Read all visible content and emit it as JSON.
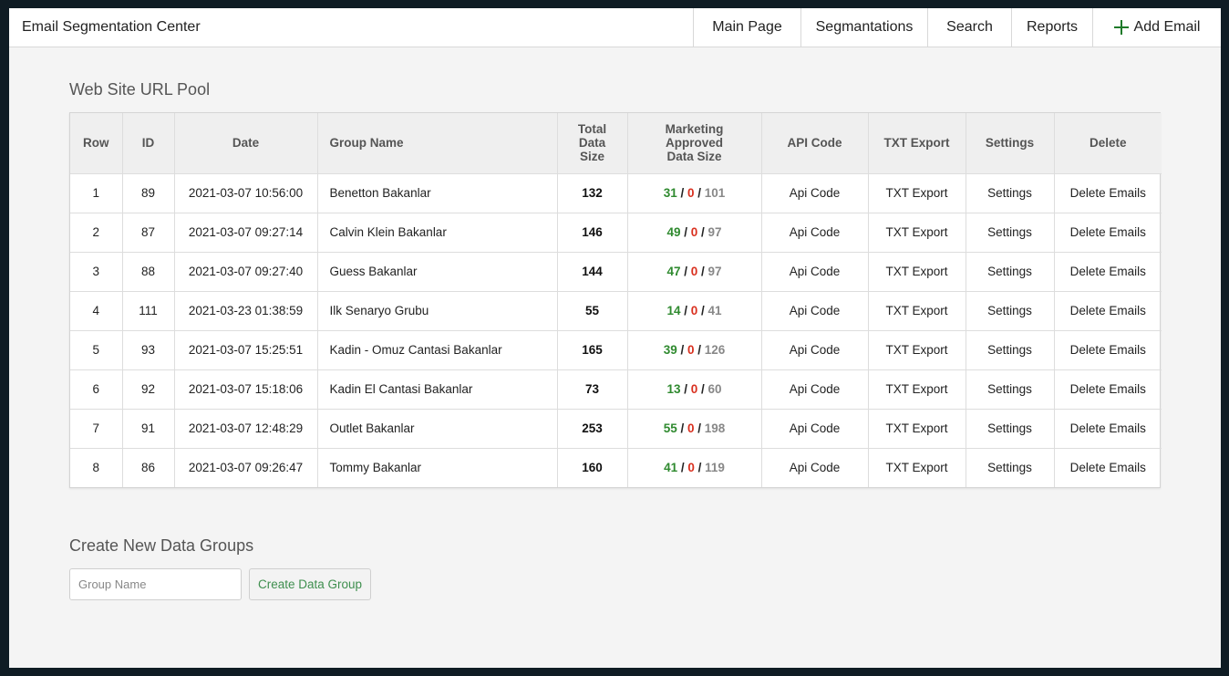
{
  "header": {
    "brand": "Email Segmentation Center",
    "nav": {
      "main_page": "Main Page",
      "segmentations": "Segmantations",
      "search": "Search",
      "reports": "Reports",
      "add_email": "Add Email"
    }
  },
  "pool": {
    "title": "Web Site URL Pool",
    "columns": {
      "row": "Row",
      "id": "ID",
      "date": "Date",
      "group_name": "Group Name",
      "total_data_size": "Total Data Size",
      "marketing_size": "Marketing Approved Data Size",
      "api_code": "API Code",
      "txt_export": "TXT Export",
      "settings": "Settings",
      "delete": "Delete"
    },
    "rows": [
      {
        "row": "1",
        "id": "89",
        "date": "2021-03-07 10:56:00",
        "group": "Benetton Bakanlar",
        "total": "132",
        "approved": "31",
        "rejected": "0",
        "pending": "101",
        "api": "Api Code",
        "txt": "TXT Export",
        "settings": "Settings",
        "delete": "Delete Emails"
      },
      {
        "row": "2",
        "id": "87",
        "date": "2021-03-07 09:27:14",
        "group": "Calvin Klein Bakanlar",
        "total": "146",
        "approved": "49",
        "rejected": "0",
        "pending": "97",
        "api": "Api Code",
        "txt": "TXT Export",
        "settings": "Settings",
        "delete": "Delete Emails"
      },
      {
        "row": "3",
        "id": "88",
        "date": "2021-03-07 09:27:40",
        "group": "Guess Bakanlar",
        "total": "144",
        "approved": "47",
        "rejected": "0",
        "pending": "97",
        "api": "Api Code",
        "txt": "TXT Export",
        "settings": "Settings",
        "delete": "Delete Emails"
      },
      {
        "row": "4",
        "id": "111",
        "date": "2021-03-23 01:38:59",
        "group": "Ilk Senaryo Grubu",
        "total": "55",
        "approved": "14",
        "rejected": "0",
        "pending": "41",
        "api": "Api Code",
        "txt": "TXT Export",
        "settings": "Settings",
        "delete": "Delete Emails"
      },
      {
        "row": "5",
        "id": "93",
        "date": "2021-03-07 15:25:51",
        "group": "Kadin - Omuz Cantasi Bakanlar",
        "total": "165",
        "approved": "39",
        "rejected": "0",
        "pending": "126",
        "api": "Api Code",
        "txt": "TXT Export",
        "settings": "Settings",
        "delete": "Delete Emails"
      },
      {
        "row": "6",
        "id": "92",
        "date": "2021-03-07 15:18:06",
        "group": "Kadin El Cantasi Bakanlar",
        "total": "73",
        "approved": "13",
        "rejected": "0",
        "pending": "60",
        "api": "Api Code",
        "txt": "TXT Export",
        "settings": "Settings",
        "delete": "Delete Emails"
      },
      {
        "row": "7",
        "id": "91",
        "date": "2021-03-07 12:48:29",
        "group": "Outlet Bakanlar",
        "total": "253",
        "approved": "55",
        "rejected": "0",
        "pending": "198",
        "api": "Api Code",
        "txt": "TXT Export",
        "settings": "Settings",
        "delete": "Delete Emails"
      },
      {
        "row": "8",
        "id": "86",
        "date": "2021-03-07 09:26:47",
        "group": "Tommy Bakanlar",
        "total": "160",
        "approved": "41",
        "rejected": "0",
        "pending": "119",
        "api": "Api Code",
        "txt": "TXT Export",
        "settings": "Settings",
        "delete": "Delete Emails"
      }
    ]
  },
  "create": {
    "title": "Create New Data Groups",
    "input_value": "",
    "input_placeholder": "Group Name",
    "button_label": "Create Data Group"
  },
  "colors": {
    "approved": "#2f8a2f",
    "rejected": "#d9301f",
    "pending": "#888888",
    "add_icon": "#1f7a2a"
  },
  "icons": {
    "add_email": "plus-icon"
  }
}
